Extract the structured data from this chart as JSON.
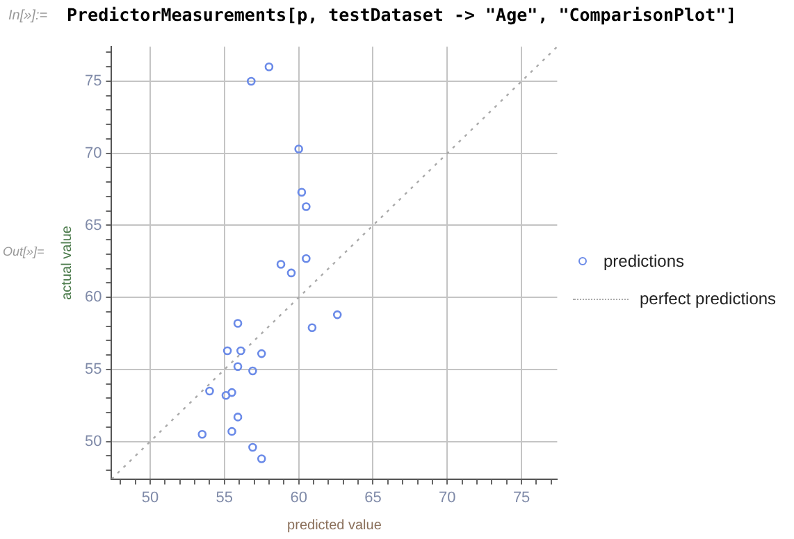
{
  "chart_data": {
    "type": "scatter",
    "xlabel": "predicted value",
    "ylabel": "actual value",
    "annotations": [
      "In[»]:=",
      "PredictorMeasurements[p, testDataset -> \"Age\", \"ComparisonPlot\"]",
      "Out[»]="
    ],
    "series": [
      {
        "name": "predictions",
        "color": "#6a8ae8",
        "x": [
          56.8,
          58.0,
          60.0,
          60.2,
          60.5,
          58.8,
          59.5,
          60.5,
          55.9,
          60.9,
          62.6,
          55.2,
          56.1,
          57.5,
          55.9,
          56.9,
          54.0,
          55.1,
          55.5,
          55.9,
          55.5,
          53.5,
          56.9,
          57.5
        ],
        "values": [
          75.0,
          76.0,
          70.3,
          67.3,
          66.3,
          62.3,
          61.7,
          62.7,
          58.2,
          57.9,
          58.8,
          56.3,
          56.3,
          56.1,
          55.2,
          54.9,
          53.5,
          53.2,
          53.4,
          51.7,
          50.7,
          50.5,
          49.6,
          48.8
        ]
      },
      {
        "name": "perfect predictions",
        "type": "line",
        "color": "#aaaaaa",
        "line_style": "dotted",
        "marker": "none",
        "x": [
          47.4,
          77.4
        ],
        "values": [
          47.4,
          77.4
        ]
      }
    ],
    "xlim": [
      47.4,
      77.4
    ],
    "ylim": [
      47.4,
      77.4
    ],
    "xticks": [
      {
        "value": 48,
        "label": null
      },
      {
        "value": 49,
        "label": null
      },
      50,
      {
        "value": 51,
        "label": null
      },
      {
        "value": 52,
        "label": null
      },
      {
        "value": 53,
        "label": null
      },
      {
        "value": 54,
        "label": null
      },
      55,
      {
        "value": 56,
        "label": null
      },
      {
        "value": 57,
        "label": null
      },
      {
        "value": 58,
        "label": null
      },
      {
        "value": 59,
        "label": null
      },
      60,
      {
        "value": 61,
        "label": null
      },
      {
        "value": 62,
        "label": null
      },
      {
        "value": 63,
        "label": null
      },
      {
        "value": 64,
        "label": null
      },
      65,
      {
        "value": 66,
        "label": null
      },
      {
        "value": 67,
        "label": null
      },
      {
        "value": 68,
        "label": null
      },
      {
        "value": 69,
        "label": null
      },
      70,
      {
        "value": 71,
        "label": null
      },
      {
        "value": 72,
        "label": null
      },
      {
        "value": 73,
        "label": null
      },
      {
        "value": 74,
        "label": null
      },
      75,
      {
        "value": 76,
        "label": null
      },
      {
        "value": 77,
        "label": null
      }
    ],
    "yticks": [
      {
        "value": 48,
        "label": null
      },
      {
        "value": 49,
        "label": null
      },
      50,
      {
        "value": 51,
        "label": null
      },
      {
        "value": 52,
        "label": null
      },
      {
        "value": 53,
        "label": null
      },
      {
        "value": 54,
        "label": null
      },
      55,
      {
        "value": 56,
        "label": null
      },
      {
        "value": 57,
        "label": null
      },
      {
        "value": 58,
        "label": null
      },
      {
        "value": 59,
        "label": null
      },
      60,
      {
        "value": 61,
        "label": null
      },
      {
        "value": 62,
        "label": null
      },
      {
        "value": 63,
        "label": null
      },
      {
        "value": 64,
        "label": null
      },
      65,
      {
        "value": 66,
        "label": null
      },
      {
        "value": 67,
        "label": null
      },
      {
        "value": 68,
        "label": null
      },
      {
        "value": 69,
        "label": null
      },
      70,
      {
        "value": 71,
        "label": null
      },
      {
        "value": 72,
        "label": null
      },
      {
        "value": 73,
        "label": null
      },
      {
        "value": 74,
        "label": null
      },
      75,
      {
        "value": 76,
        "label": null
      },
      {
        "value": 77,
        "label": null
      }
    ],
    "grid": true,
    "legend": "right",
    "marker": "circle"
  }
}
